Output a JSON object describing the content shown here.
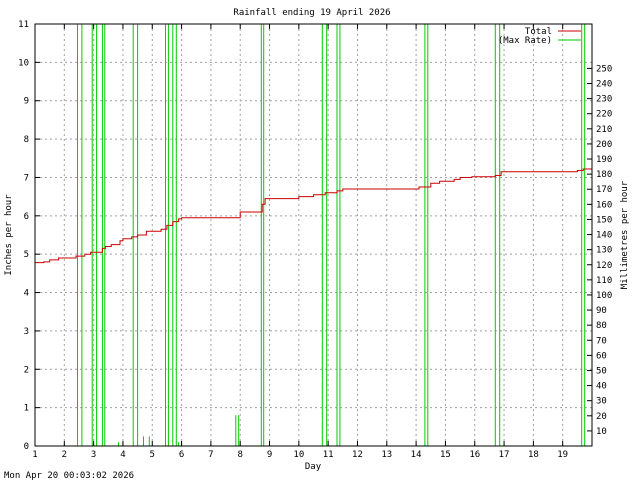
{
  "timestamp": "Mon Apr 20 00:03:02 2026",
  "chart_data": {
    "type": "line",
    "title": "Rainfall ending 19 April 2026",
    "xlabel": "Day",
    "ylabel": "Inches per hour",
    "y2label": "Millimetres per hour",
    "xlim": [
      1,
      20
    ],
    "ylim": [
      0,
      11
    ],
    "y2lim": [
      0,
      279.4
    ],
    "xticks": [
      "1",
      "2",
      "3",
      "4",
      "5",
      "6",
      "7",
      "8",
      "9",
      "10",
      "11",
      "12",
      "13",
      "14",
      "15",
      "16",
      "17",
      "18",
      "19"
    ],
    "yticks": [
      "0",
      "1",
      "2",
      "3",
      "4",
      "5",
      "6",
      "7",
      "8",
      "9",
      "10",
      "11"
    ],
    "y2ticks": [
      "10",
      "20",
      "30",
      "40",
      "50",
      "60",
      "70",
      "80",
      "90",
      "100",
      "110",
      "120",
      "130",
      "140",
      "150",
      "160",
      "170",
      "180",
      "190",
      "200",
      "210",
      "220",
      "230",
      "240",
      "250"
    ],
    "grid": true,
    "legend_position": "top-right",
    "series": [
      {
        "name": "Total",
        "color": "#cc0000",
        "points": [
          [
            1.0,
            4.78
          ],
          [
            1.3,
            4.8
          ],
          [
            1.5,
            4.85
          ],
          [
            1.8,
            4.9
          ],
          [
            2.4,
            4.95
          ],
          [
            2.7,
            5.0
          ],
          [
            2.9,
            5.05
          ],
          [
            3.3,
            5.15
          ],
          [
            3.4,
            5.2
          ],
          [
            3.6,
            5.25
          ],
          [
            3.9,
            5.35
          ],
          [
            4.0,
            5.4
          ],
          [
            4.3,
            5.45
          ],
          [
            4.5,
            5.5
          ],
          [
            4.8,
            5.6
          ],
          [
            5.3,
            5.65
          ],
          [
            5.5,
            5.75
          ],
          [
            5.7,
            5.85
          ],
          [
            5.9,
            5.92
          ],
          [
            6.0,
            5.95
          ],
          [
            7.0,
            5.95
          ],
          [
            7.9,
            5.95
          ],
          [
            8.0,
            6.1
          ],
          [
            8.7,
            6.1
          ],
          [
            8.75,
            6.3
          ],
          [
            8.85,
            6.45
          ],
          [
            9.0,
            6.45
          ],
          [
            9.8,
            6.45
          ],
          [
            10.0,
            6.5
          ],
          [
            10.5,
            6.55
          ],
          [
            10.9,
            6.6
          ],
          [
            11.3,
            6.65
          ],
          [
            11.5,
            6.7
          ],
          [
            12.0,
            6.7
          ],
          [
            13.0,
            6.7
          ],
          [
            14.1,
            6.75
          ],
          [
            14.5,
            6.85
          ],
          [
            14.8,
            6.9
          ],
          [
            15.3,
            6.95
          ],
          [
            15.5,
            7.0
          ],
          [
            15.9,
            7.02
          ],
          [
            16.7,
            7.05
          ],
          [
            16.9,
            7.15
          ],
          [
            17.0,
            7.15
          ],
          [
            18.0,
            7.15
          ],
          [
            19.0,
            7.15
          ],
          [
            19.5,
            7.18
          ],
          [
            19.7,
            7.22
          ],
          [
            20.0,
            7.25
          ]
        ]
      },
      {
        "name": "(Max Rate)",
        "color": "#00cc00",
        "spikes": [
          [
            2.45,
            2.6,
            11
          ],
          [
            2.95,
            3.1,
            11
          ],
          [
            3.3,
            3.38,
            11
          ],
          [
            4.35,
            4.5,
            11
          ],
          [
            5.45,
            5.55,
            11
          ],
          [
            5.7,
            5.82,
            11
          ],
          [
            8.72,
            8.8,
            11
          ],
          [
            10.8,
            10.95,
            11
          ],
          [
            11.3,
            11.4,
            11
          ],
          [
            14.3,
            14.4,
            11
          ],
          [
            16.7,
            16.85,
            11
          ],
          [
            19.65,
            19.75,
            11
          ],
          [
            3.85,
            4.0,
            0.1
          ],
          [
            4.7,
            4.9,
            0.25
          ],
          [
            5.9,
            6.0,
            0.1
          ],
          [
            7.85,
            7.95,
            0.8
          ]
        ]
      }
    ]
  }
}
